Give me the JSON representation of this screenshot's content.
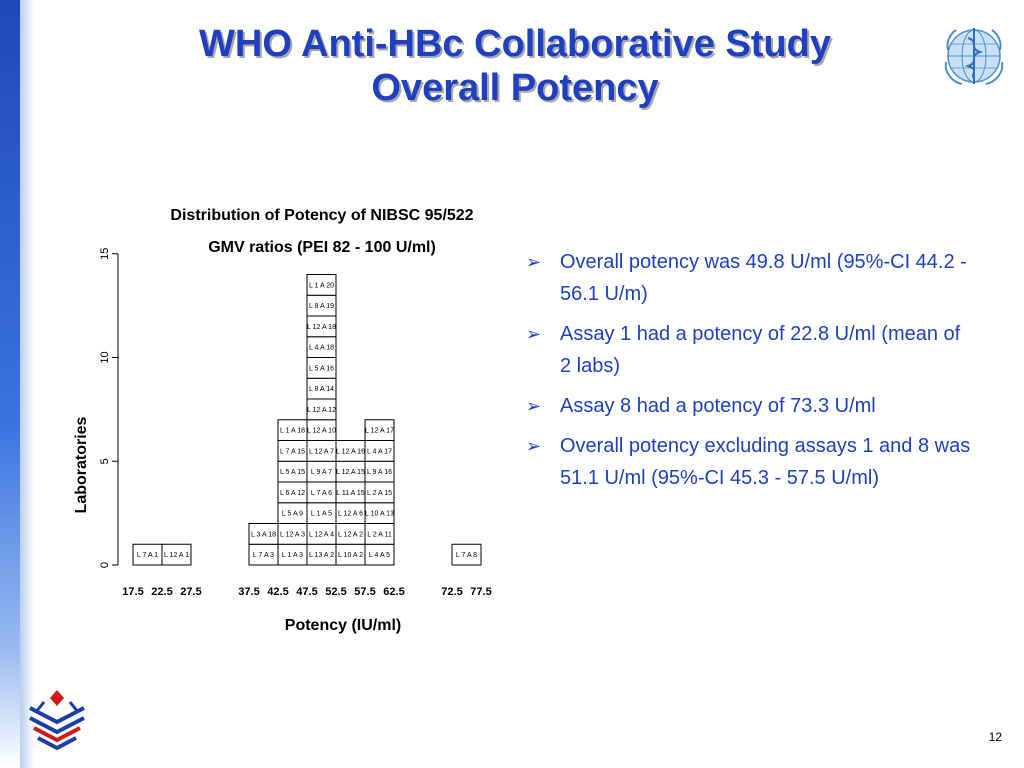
{
  "slide": {
    "title_line1": "WHO Anti-HBc Collaborative Study",
    "title_line2": "Overall Potency",
    "page_number": "12"
  },
  "bullets": [
    "Overall potency was 49.8 U/ml (95%-CI 44.2 - 56.1 U/m)",
    "Assay 1 had a potency of 22.8 U/ml (mean of 2 labs)",
    "Assay 8 had a potency of 73.3 U/ml",
    "Overall potency excluding assays 1 and 8 was 51.1 U/ml (95%-CI 45.3 - 57.5 U/ml)"
  ],
  "chart_data": {
    "type": "bar",
    "title": "Distribution of Potency of NIBSC 95/522",
    "subtitle": "GMV ratios (PEI 82 - 100 U/ml)",
    "xlabel": "Potency (IU/ml)",
    "ylabel": "Laboratories",
    "ylim": [
      0,
      15
    ],
    "yticks": [
      "0",
      "5",
      "10",
      "15"
    ],
    "xticks": [
      "17.5",
      "22.5",
      "27.5",
      "37.5",
      "42.5",
      "47.5",
      "52.5",
      "57.5",
      "62.5",
      "72.5",
      "77.5"
    ],
    "bin_width": 5,
    "bins": [
      {
        "bin": "17.5-22.5",
        "count": 1,
        "labels": [
          "L 7  A 1"
        ]
      },
      {
        "bin": "22.5-27.5",
        "count": 1,
        "labels": [
          "L 12  A 1"
        ]
      },
      {
        "bin": "27.5-32.5",
        "count": 0,
        "labels": []
      },
      {
        "bin": "32.5-37.5",
        "count": 0,
        "labels": []
      },
      {
        "bin": "37.5-42.5",
        "count": 2,
        "labels": [
          "L 7  A 3",
          "L 3  A 18"
        ]
      },
      {
        "bin": "42.5-47.5",
        "count": 7,
        "labels": [
          "L 1  A 3",
          "L 12  A 3",
          "L 5  A 9",
          "L 6  A 12",
          "L 5  A 15",
          "L 7  A 15",
          "L 1  A 18"
        ]
      },
      {
        "bin": "47.5-52.5",
        "count": 14,
        "labels": [
          "L 13  A 2",
          "L 12  A 4",
          "L 1  A 5",
          "L 7  A 6",
          "L 9  A 7",
          "L 12  A 7",
          "L 12  A 10",
          "L 12  A 12",
          "L 8  A 14",
          "L 5  A 16",
          "L 4  A 18",
          "L 12  A 18",
          "L 8  A 19",
          "L 1  A 20"
        ]
      },
      {
        "bin": "52.5-57.5",
        "count": 6,
        "labels": [
          "L 10  A 2",
          "L 12  A 2",
          "L 12  A 6",
          "L 11  A 15",
          "L 12  A 15",
          "L 12  A 16"
        ]
      },
      {
        "bin": "57.5-62.5",
        "count": 7,
        "labels": [
          "L 4  A 5",
          "L 2  A 11",
          "L 10  A 13",
          "L 2  A 15",
          "L 9  A 16",
          "L 4  A 17",
          "L 12  A 17"
        ]
      },
      {
        "bin": "62.5-67.5",
        "count": 0,
        "labels": []
      },
      {
        "bin": "67.5-72.5",
        "count": 0,
        "labels": []
      },
      {
        "bin": "72.5-77.5",
        "count": 1,
        "labels": [
          "L 7  A 8"
        ]
      }
    ]
  }
}
